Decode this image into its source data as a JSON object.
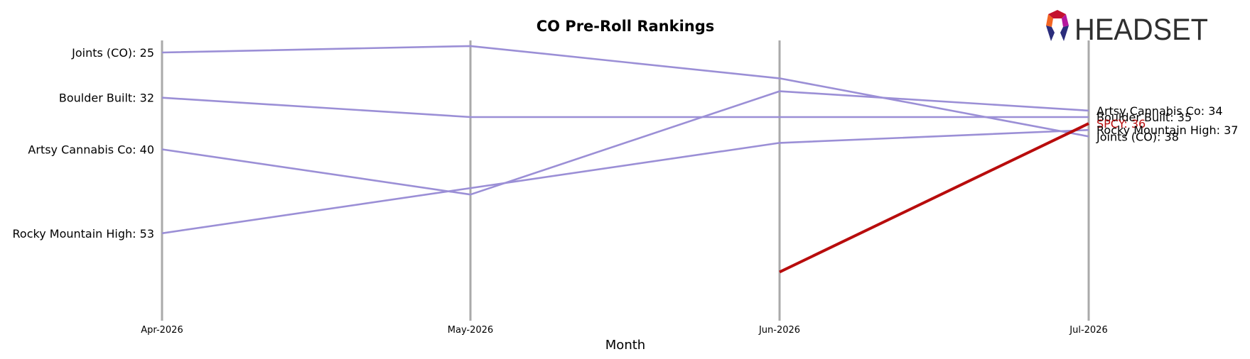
{
  "chart_data": {
    "type": "line",
    "title": "CO Pre-Roll Rankings",
    "xlabel": "Month",
    "ylabel": "",
    "categories": [
      "Apr-2026",
      "May-2026",
      "Jun-2026",
      "Jul-2026"
    ],
    "ylim": [
      24,
      62
    ],
    "y_inverted": true,
    "grid": "vertical lines at each month",
    "series": [
      {
        "name": "Joints (CO)",
        "values": [
          25,
          24,
          29,
          38
        ],
        "color": "#9b8fd6"
      },
      {
        "name": "Boulder Built",
        "values": [
          32,
          35,
          35,
          35
        ],
        "color": "#9b8fd6"
      },
      {
        "name": "Artsy Cannabis Co",
        "values": [
          40,
          47,
          31,
          34
        ],
        "color": "#9b8fd6"
      },
      {
        "name": "Rocky Mountain High",
        "values": [
          53,
          46,
          39,
          37
        ],
        "color": "#9b8fd6"
      },
      {
        "name": "SPCY",
        "values": [
          null,
          null,
          59,
          36
        ],
        "color": "#b80c0c"
      }
    ],
    "left_labels": [
      {
        "series": "Joints (CO)",
        "text": "Joints (CO): 25"
      },
      {
        "series": "Boulder Built",
        "text": "Boulder Built: 32"
      },
      {
        "series": "Artsy Cannabis Co",
        "text": "Artsy Cannabis Co: 40"
      },
      {
        "series": "Rocky Mountain High",
        "text": "Rocky Mountain High: 53"
      }
    ],
    "right_labels": [
      {
        "series": "Artsy Cannabis Co",
        "text": "Artsy Cannabis Co: 34"
      },
      {
        "series": "Boulder Built",
        "text": "Boulder Built: 35"
      },
      {
        "series": "SPCY",
        "text": "SPCY: 36"
      },
      {
        "series": "Rocky Mountain High",
        "text": "Rocky Mountain High: 37"
      },
      {
        "series": "Joints (CO)",
        "text": "Joints (CO): 38"
      }
    ]
  },
  "logo": {
    "text": "HEADSET",
    "colors": {
      "text": "#2f2f2f",
      "red": "#c4122f",
      "orange": "#f26522",
      "magenta": "#b5179e",
      "navy": "#2b2d7c"
    }
  }
}
